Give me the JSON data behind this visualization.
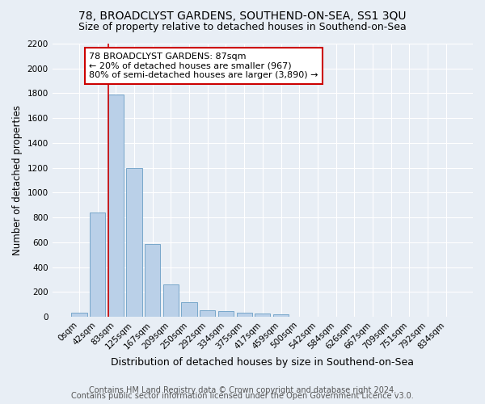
{
  "title": "78, BROADCLYST GARDENS, SOUTHEND-ON-SEA, SS1 3QU",
  "subtitle": "Size of property relative to detached houses in Southend-on-Sea",
  "xlabel": "Distribution of detached houses by size in Southend-on-Sea",
  "ylabel": "Number of detached properties",
  "footer_line1": "Contains HM Land Registry data © Crown copyright and database right 2024.",
  "footer_line2": "Contains public sector information licensed under the Open Government Licence v3.0.",
  "bar_labels": [
    "0sqm",
    "42sqm",
    "83sqm",
    "125sqm",
    "167sqm",
    "209sqm",
    "250sqm",
    "292sqm",
    "334sqm",
    "375sqm",
    "417sqm",
    "459sqm",
    "500sqm",
    "542sqm",
    "584sqm",
    "626sqm",
    "667sqm",
    "709sqm",
    "751sqm",
    "792sqm",
    "834sqm"
  ],
  "bar_values": [
    30,
    840,
    1790,
    1200,
    585,
    260,
    115,
    50,
    48,
    35,
    28,
    18,
    0,
    0,
    0,
    0,
    0,
    0,
    0,
    0,
    0
  ],
  "bar_color": "#bad0e8",
  "bar_edgecolor": "#6a9ec5",
  "highlight_bar_index": 2,
  "highlight_color": "#cc0000",
  "annotation_text": "78 BROADCLYST GARDENS: 87sqm\n← 20% of detached houses are smaller (967)\n80% of semi-detached houses are larger (3,890) →",
  "annotation_box_color": "#ffffff",
  "annotation_box_edgecolor": "#cc0000",
  "ylim": [
    0,
    2200
  ],
  "yticks": [
    0,
    200,
    400,
    600,
    800,
    1000,
    1200,
    1400,
    1600,
    1800,
    2000,
    2200
  ],
  "background_color": "#e8eef5",
  "plot_background": "#e8eef5",
  "grid_color": "#ffffff",
  "title_fontsize": 10,
  "subtitle_fontsize": 9,
  "tick_fontsize": 7.5,
  "ylabel_fontsize": 8.5,
  "xlabel_fontsize": 9,
  "annotation_fontsize": 8,
  "footer_fontsize": 7
}
